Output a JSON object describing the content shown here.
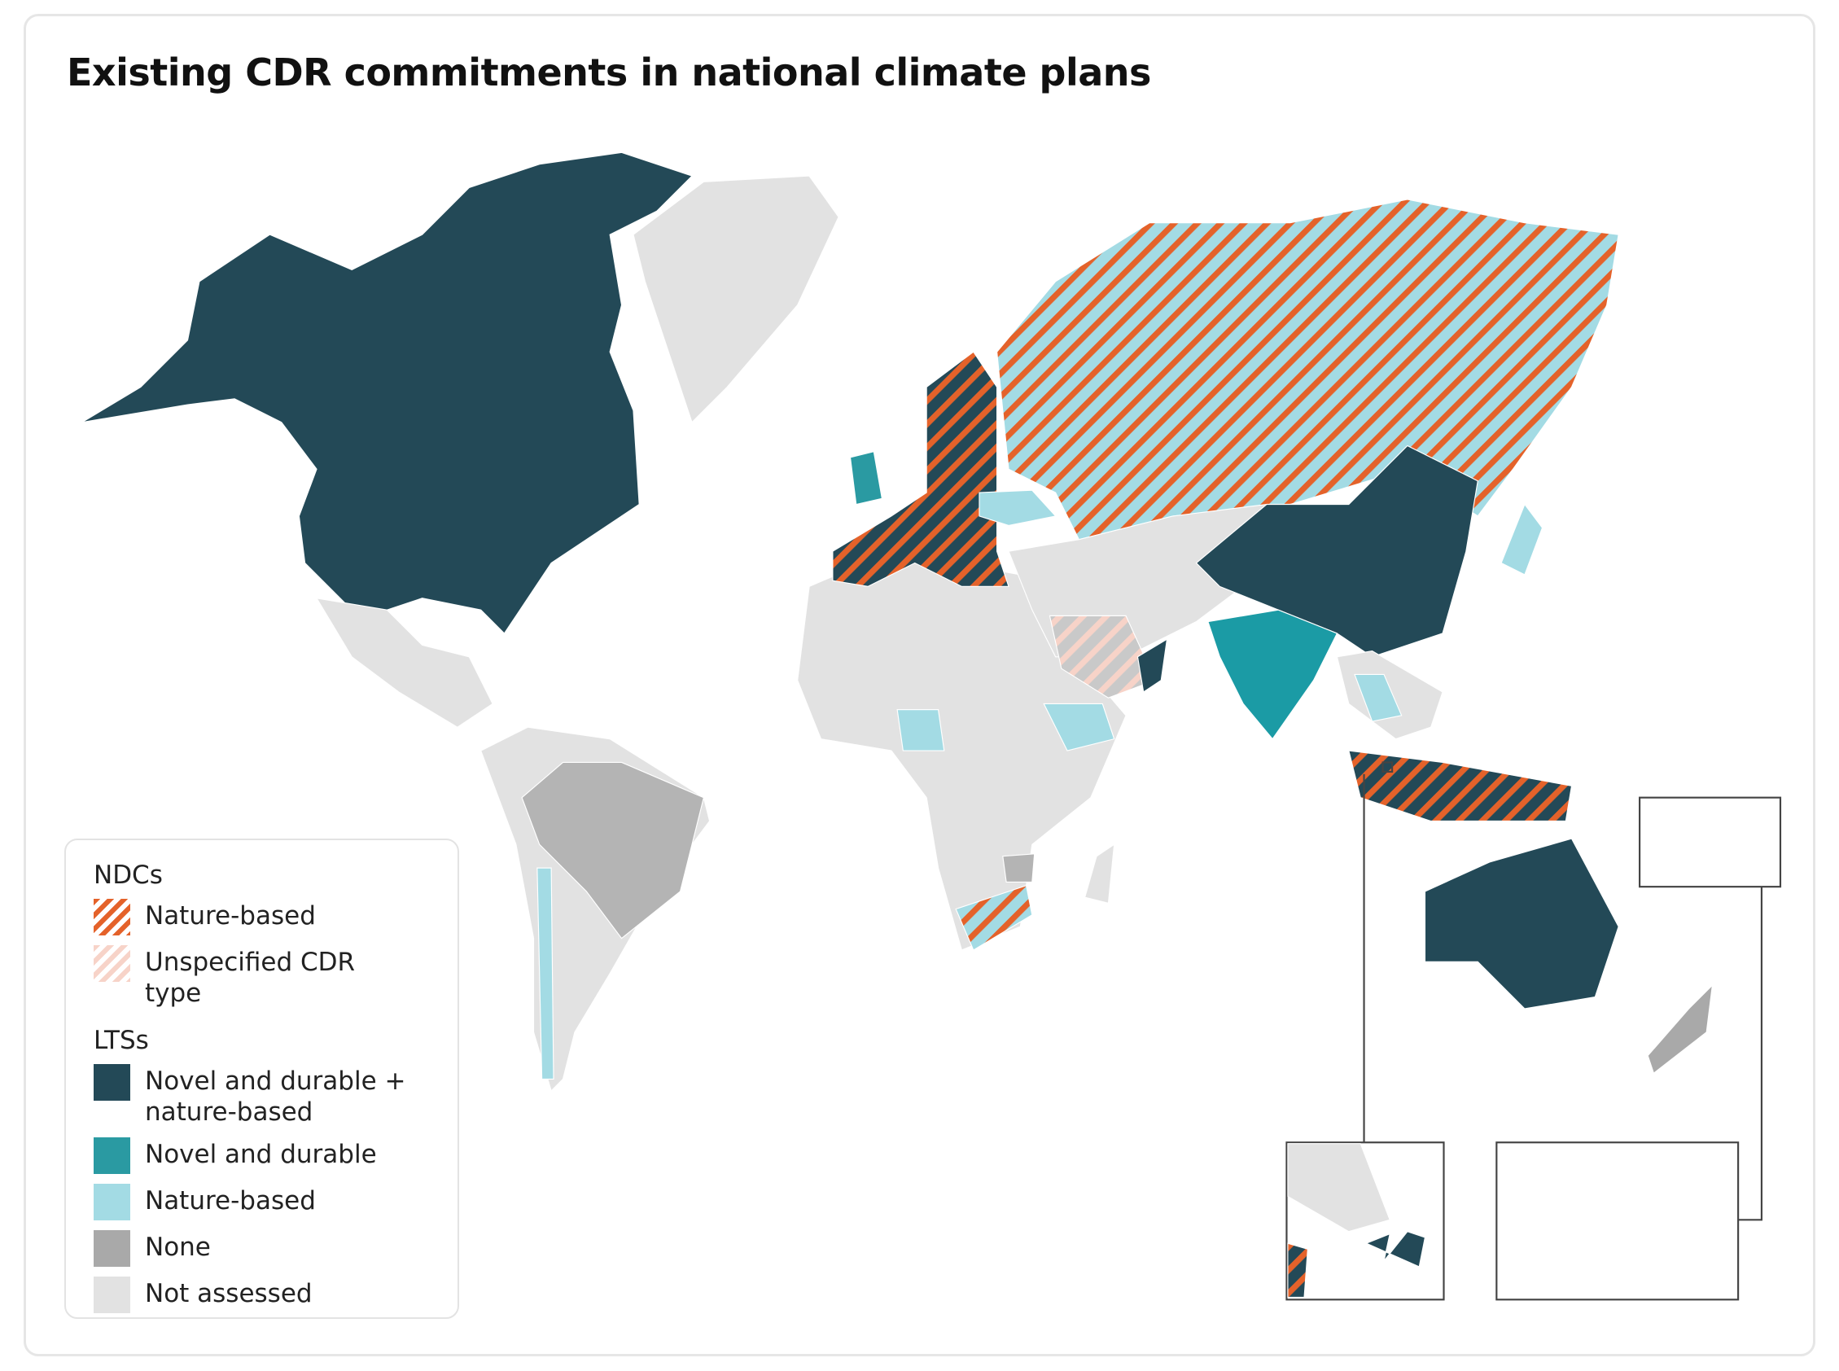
{
  "title": "Existing CDR commitments in national climate plans",
  "legend": {
    "groups": [
      {
        "heading": "NDCs",
        "items": [
          {
            "label": "Nature-based"
          },
          {
            "label": "Unspecified CDR type"
          }
        ]
      },
      {
        "heading": "LTSs",
        "items": [
          {
            "label": "Novel and durable + nature-based"
          },
          {
            "label": "Novel and durable"
          },
          {
            "label": "Nature-based"
          },
          {
            "label": "None"
          },
          {
            "label": "Not assessed"
          }
        ]
      }
    ]
  }
}
